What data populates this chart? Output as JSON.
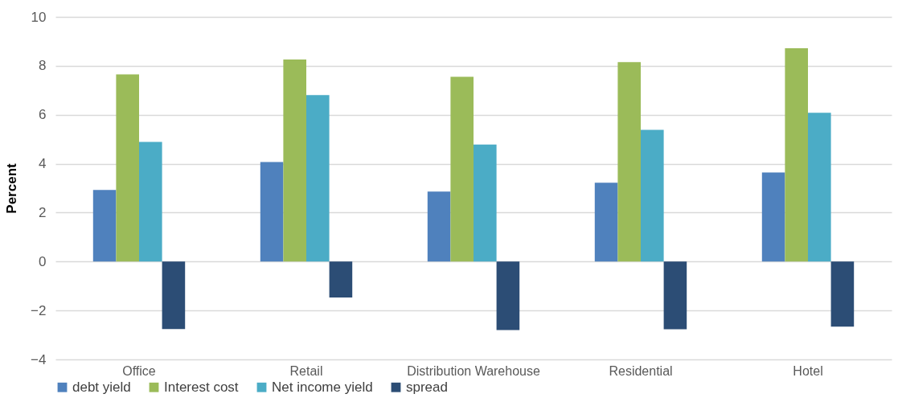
{
  "chart_data": {
    "type": "bar",
    "ylabel": "Percent",
    "categories": [
      "Office",
      "Retail",
      "Distribution Warehouse",
      "Residential",
      "Hotel"
    ],
    "series": [
      {
        "name": "debt yield",
        "color": "#4f81bd",
        "values": [
          2.93,
          4.07,
          2.86,
          3.22,
          3.64
        ]
      },
      {
        "name": "Interest cost",
        "color": "#9bbb59",
        "values": [
          7.65,
          8.26,
          7.55,
          8.15,
          8.72
        ]
      },
      {
        "name": "Net income yield",
        "color": "#4bacc6",
        "values": [
          4.89,
          6.8,
          4.78,
          5.38,
          6.08
        ]
      },
      {
        "name": "spread",
        "color": "#2c4d75",
        "values": [
          -2.76,
          -1.47,
          -2.8,
          -2.77,
          -2.66
        ]
      }
    ],
    "ylim": [
      -4,
      10
    ],
    "yticks": [
      -4,
      -2,
      0,
      2,
      4,
      6,
      8,
      10
    ],
    "grid": "y",
    "legend": "bottom"
  }
}
